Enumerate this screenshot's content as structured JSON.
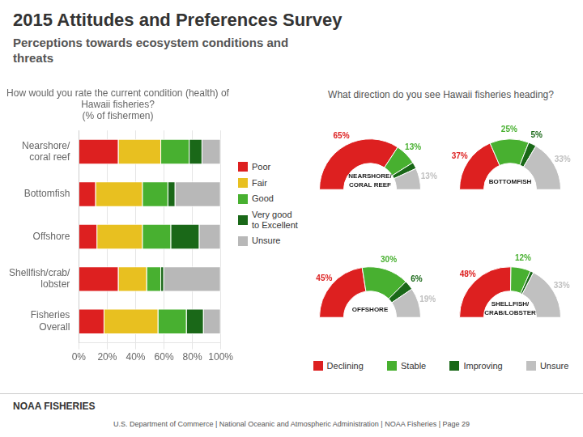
{
  "title": "2015 Attitudes and Preferences Survey",
  "subtitle": "Perceptions towards ecosystem conditions and\nthreats",
  "annotations": [
    "What direction do you see Hawaii fisheries heading?",
    "NOAA FISHERIES",
    "U.S. Department of Commerce  |  National Oceanic and Atmospheric Administration  |  NOAA Fisheries  |  Page 29"
  ],
  "chart_data": [
    {
      "type": "bar",
      "orientation": "horizontal",
      "stacked": true,
      "title": "How would you rate the current condition (health) of\nHawaii fisheries?\n(% of fishermen)",
      "categories": [
        "Nearshore/\ncoral reef",
        "Bottomfish",
        "Offshore",
        "Shellfish/crab/\nlobster",
        "Fisheries\nOverall"
      ],
      "series": [
        {
          "name": "Poor",
          "color": "#dd2020",
          "values": [
            28,
            12,
            13,
            28,
            18
          ]
        },
        {
          "name": "Fair",
          "color": "#e8c020",
          "values": [
            30,
            33,
            32,
            20,
            38
          ]
        },
        {
          "name": "Good",
          "color": "#48b030",
          "values": [
            20,
            18,
            20,
            10,
            20
          ]
        },
        {
          "name": "Very good\nto Excellent",
          "color": "#1a6818",
          "values": [
            9,
            5,
            20,
            2,
            12
          ]
        },
        {
          "name": "Unsure",
          "color": "#b8b8b8",
          "values": [
            13,
            32,
            15,
            40,
            12
          ]
        }
      ],
      "xlim": [
        0,
        100
      ],
      "xticks": [
        {
          "value": 0,
          "label": "0%"
        },
        {
          "value": 20,
          "label": "20%"
        },
        {
          "value": 40,
          "label": "40%"
        },
        {
          "value": 60,
          "label": "60%"
        },
        {
          "value": 80,
          "label": "80%"
        },
        {
          "value": 100,
          "label": "100%"
        }
      ],
      "grid": "x",
      "legend": "right"
    },
    {
      "type": "doughnut",
      "title": "NEARSHORE/\nCORAL REEF",
      "categories": [
        "Declining",
        "Stable",
        "Improving",
        "Unsure"
      ],
      "values": [
        65,
        13,
        4,
        13
      ],
      "value_labels": [
        "65%",
        "13%",
        null,
        "13%"
      ],
      "colors": [
        "#dd2020",
        "#48b030",
        "#1a6818",
        "#c0c0c0"
      ],
      "data_labels": true,
      "legend": "bottom"
    },
    {
      "type": "doughnut",
      "title": "BOTTOMFISH",
      "categories": [
        "Declining",
        "Stable",
        "Improving",
        "Unsure"
      ],
      "values": [
        37,
        25,
        5,
        33
      ],
      "value_labels": [
        "37%",
        "25%",
        "5%",
        "33%"
      ],
      "colors": [
        "#dd2020",
        "#48b030",
        "#1a6818",
        "#c0c0c0"
      ],
      "data_labels": true,
      "legend": "bottom"
    },
    {
      "type": "doughnut",
      "title": "OFFSHORE",
      "categories": [
        "Declining",
        "Stable",
        "Improving",
        "Unsure"
      ],
      "values": [
        45,
        30,
        6,
        19
      ],
      "value_labels": [
        "45%",
        "30%",
        "6%",
        "19%"
      ],
      "colors": [
        "#dd2020",
        "#48b030",
        "#1a6818",
        "#c0c0c0"
      ],
      "data_labels": true,
      "legend": "bottom"
    },
    {
      "type": "doughnut",
      "title": "SHELLFISH/\nCRAB/LOBSTER",
      "categories": [
        "Declining",
        "Stable",
        "Improving",
        "Unsure"
      ],
      "values": [
        48,
        12,
        2,
        33
      ],
      "value_labels": [
        "48%",
        "12%",
        null,
        "33%"
      ],
      "colors": [
        "#dd2020",
        "#48b030",
        "#1a6818",
        "#c0c0c0"
      ],
      "data_labels": true,
      "legend": "bottom"
    }
  ]
}
